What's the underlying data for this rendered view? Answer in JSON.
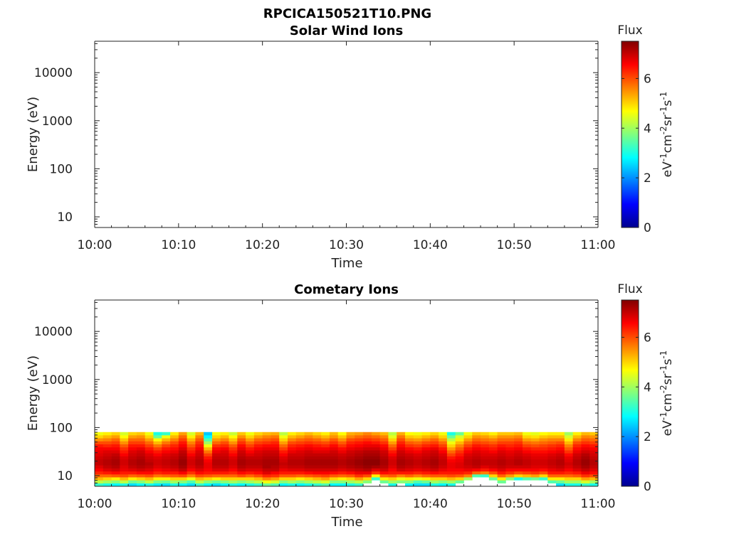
{
  "figure_title": "RPCICA150521T10.PNG",
  "chart_data": [
    {
      "type": "heatmap",
      "title": "Solar Wind Ions",
      "xlabel": "Time",
      "ylabel": "Energy (eV)",
      "yscale": "log",
      "ylim": [
        6,
        45000
      ],
      "x_ticks": [
        "10:00",
        "10:10",
        "10:20",
        "10:30",
        "10:40",
        "10:50",
        "11:00"
      ],
      "y_ticks": [
        "10",
        "100",
        "1000",
        "10000"
      ],
      "colorbar": {
        "label": "Flux",
        "unit_html": "eV<tspan dy='-7' font-size='12'>-1</tspan><tspan dy='7'>cm</tspan><tspan dy='-7' font-size='12'>-2</tspan><tspan dy='7'>sr</tspan><tspan dy='-7' font-size='12'>-1</tspan><tspan dy='7'>s</tspan><tspan dy='-7' font-size='12'>-1</tspan>",
        "ticks": [
          "0",
          "2",
          "4",
          "6"
        ],
        "range": [
          0,
          7.5
        ]
      },
      "columns": []
    },
    {
      "type": "heatmap",
      "title": "Cometary Ions",
      "xlabel": "Time",
      "ylabel": "Energy (eV)",
      "yscale": "log",
      "ylim": [
        6,
        45000
      ],
      "x_ticks": [
        "10:00",
        "10:10",
        "10:20",
        "10:30",
        "10:40",
        "10:50",
        "11:00"
      ],
      "y_ticks": [
        "10",
        "100",
        "1000",
        "10000"
      ],
      "colorbar": {
        "label": "Flux",
        "unit_html": "eV<tspan dy='-7' font-size='12'>-1</tspan><tspan dy='7'>cm</tspan><tspan dy='-7' font-size='12'>-2</tspan><tspan dy='7'>sr</tspan><tspan dy='-7' font-size='12'>-1</tspan><tspan dy='7'>s</tspan><tspan dy='-7' font-size='12'>-1</tspan>",
        "ticks": [
          "0",
          "2",
          "4",
          "6"
        ],
        "range": [
          0,
          7.5
        ]
      },
      "energy_bins": [
        6.5,
        7.5,
        8.7,
        10,
        11.5,
        13.3,
        15.4,
        17.8,
        20.5,
        23.7,
        27.4,
        31.6,
        36.5,
        42.2,
        48.7,
        56.3,
        65,
        75
      ],
      "column_minutes": 1,
      "columns": [
        [
          3.2,
          4.2,
          5.2,
          5.8,
          6.3,
          6.6,
          6.8,
          7.0,
          7.0,
          6.9,
          6.8,
          6.7,
          6.6,
          6.4,
          6.0,
          5.5,
          5.0,
          4.6
        ],
        [
          3.0,
          4.0,
          5.0,
          5.8,
          6.4,
          6.8,
          7.0,
          7.1,
          7.1,
          7.0,
          6.9,
          6.8,
          6.6,
          6.3,
          6.0,
          5.6,
          5.2,
          4.8
        ],
        [
          2.8,
          3.8,
          4.8,
          5.9,
          6.5,
          6.9,
          7.1,
          7.2,
          7.2,
          7.1,
          7.0,
          6.8,
          6.6,
          6.4,
          6.1,
          5.8,
          5.4,
          5.0
        ],
        [
          3.0,
          4.2,
          5.2,
          6.0,
          6.4,
          6.7,
          6.8,
          6.9,
          6.9,
          6.8,
          6.6,
          6.4,
          6.2,
          5.9,
          5.5,
          5.1,
          4.7,
          4.4
        ],
        [
          2.6,
          3.6,
          4.8,
          5.8,
          6.4,
          6.8,
          7.0,
          7.1,
          7.1,
          7.0,
          6.9,
          6.8,
          6.6,
          6.4,
          6.1,
          5.8,
          5.4,
          5.0
        ],
        [
          2.8,
          3.8,
          5.0,
          5.9,
          6.5,
          6.9,
          7.1,
          7.2,
          7.2,
          7.1,
          7.0,
          6.9,
          6.7,
          6.4,
          6.1,
          5.8,
          5.5,
          5.1
        ],
        [
          3.0,
          4.2,
          5.2,
          6.0,
          6.5,
          6.8,
          7.0,
          7.1,
          7.0,
          6.9,
          6.8,
          6.6,
          6.4,
          6.1,
          5.8,
          5.4,
          5.0,
          4.6
        ],
        [
          2.7,
          3.7,
          4.8,
          5.7,
          6.3,
          6.6,
          6.8,
          6.9,
          6.9,
          6.8,
          6.6,
          6.4,
          6.1,
          5.7,
          5.2,
          4.7,
          3.6,
          3.0
        ],
        [
          2.6,
          3.6,
          4.8,
          5.8,
          6.4,
          6.7,
          6.9,
          7.0,
          7.0,
          6.9,
          6.8,
          6.6,
          6.4,
          6.1,
          5.7,
          5.2,
          4.6,
          3.2
        ],
        [
          3.0,
          4.0,
          5.0,
          5.9,
          6.4,
          6.8,
          7.0,
          7.1,
          7.1,
          7.0,
          6.9,
          6.7,
          6.5,
          6.3,
          6.0,
          5.6,
          5.2,
          4.8
        ],
        [
          2.8,
          3.8,
          5.0,
          6.0,
          6.6,
          7.0,
          7.2,
          7.3,
          7.3,
          7.2,
          7.1,
          7.0,
          6.8,
          6.6,
          6.4,
          6.1,
          5.8,
          5.4
        ],
        [
          2.6,
          3.4,
          4.6,
          5.6,
          6.2,
          6.6,
          6.8,
          6.9,
          6.9,
          6.8,
          6.6,
          6.4,
          6.2,
          5.9,
          5.6,
          5.2,
          4.8,
          4.4
        ],
        [
          3.2,
          4.2,
          5.2,
          6.0,
          6.5,
          6.8,
          7.0,
          7.1,
          7.1,
          7.0,
          6.9,
          6.8,
          6.6,
          6.4,
          6.2,
          5.9,
          5.6,
          5.2
        ],
        [
          2.8,
          3.8,
          5.0,
          5.9,
          6.4,
          6.6,
          6.7,
          6.7,
          6.6,
          6.4,
          6.1,
          5.7,
          5.2,
          4.6,
          4.0,
          3.4,
          2.8,
          2.4
        ],
        [
          2.6,
          3.6,
          4.8,
          5.8,
          6.4,
          6.8,
          7.0,
          7.1,
          7.1,
          7.0,
          6.9,
          6.7,
          6.5,
          6.2,
          5.8,
          5.4,
          5.0,
          4.6
        ],
        [
          2.8,
          3.8,
          5.0,
          5.8,
          6.4,
          6.8,
          7.0,
          7.1,
          7.1,
          7.0,
          6.9,
          6.8,
          6.6,
          6.3,
          6.0,
          5.6,
          5.2,
          4.8
        ],
        [
          3.0,
          4.0,
          5.0,
          5.8,
          6.3,
          6.6,
          6.8,
          6.9,
          6.9,
          6.8,
          6.6,
          6.4,
          6.2,
          5.9,
          5.5,
          5.1,
          4.7,
          4.3
        ],
        [
          2.8,
          3.8,
          5.0,
          6.0,
          6.5,
          6.9,
          7.1,
          7.2,
          7.2,
          7.1,
          7.0,
          6.9,
          6.7,
          6.5,
          6.2,
          5.9,
          5.5,
          5.1
        ],
        [
          3.0,
          4.0,
          5.0,
          5.8,
          6.4,
          6.8,
          7.0,
          7.1,
          7.1,
          7.0,
          6.8,
          6.6,
          6.4,
          6.1,
          5.8,
          5.4,
          5.0,
          4.6
        ],
        [
          3.2,
          4.2,
          5.2,
          6.0,
          6.5,
          6.8,
          7.0,
          7.1,
          7.1,
          7.0,
          6.9,
          6.8,
          6.6,
          6.4,
          6.1,
          5.8,
          5.4,
          5.0
        ],
        [
          3.6,
          4.6,
          5.6,
          6.3,
          6.8,
          7.0,
          7.2,
          7.2,
          7.2,
          7.1,
          7.0,
          6.9,
          6.7,
          6.5,
          6.2,
          5.9,
          5.6,
          5.2
        ],
        [
          3.4,
          4.4,
          5.4,
          6.2,
          6.6,
          7.0,
          7.1,
          7.2,
          7.2,
          7.1,
          7.0,
          6.9,
          6.7,
          6.5,
          6.3,
          6.0,
          5.7,
          5.3
        ],
        [
          2.8,
          3.8,
          5.0,
          5.9,
          6.4,
          6.7,
          6.9,
          7.0,
          6.9,
          6.8,
          6.6,
          6.4,
          6.1,
          5.8,
          5.4,
          5.0,
          4.6,
          4.2
        ],
        [
          3.0,
          4.0,
          5.0,
          5.9,
          6.4,
          6.8,
          7.0,
          7.1,
          7.1,
          7.0,
          6.9,
          6.7,
          6.5,
          6.3,
          6.0,
          5.6,
          5.2,
          4.8
        ],
        [
          2.8,
          3.8,
          4.8,
          5.8,
          6.4,
          6.8,
          7.0,
          7.1,
          7.1,
          7.0,
          6.9,
          6.8,
          6.6,
          6.4,
          6.1,
          5.8,
          5.4,
          5.0
        ],
        [
          3.0,
          4.0,
          5.0,
          5.9,
          6.5,
          6.9,
          7.1,
          7.2,
          7.2,
          7.1,
          7.0,
          6.9,
          6.7,
          6.5,
          6.2,
          5.9,
          5.6,
          5.2
        ],
        [
          3.2,
          4.2,
          5.2,
          6.0,
          6.6,
          6.9,
          7.1,
          7.2,
          7.2,
          7.1,
          7.0,
          6.8,
          6.6,
          6.4,
          6.1,
          5.8,
          5.4,
          5.0
        ],
        [
          3.4,
          4.4,
          5.4,
          6.1,
          6.6,
          6.9,
          7.1,
          7.2,
          7.2,
          7.1,
          7.0,
          6.8,
          6.6,
          6.3,
          6.0,
          5.6,
          5.2,
          4.8
        ],
        [
          2.8,
          3.8,
          5.0,
          5.9,
          6.5,
          6.9,
          7.1,
          7.2,
          7.2,
          7.1,
          7.0,
          6.9,
          6.7,
          6.5,
          6.2,
          5.9,
          5.5,
          5.2
        ],
        [
          2.8,
          3.8,
          4.8,
          5.8,
          6.4,
          6.8,
          7.0,
          7.1,
          7.1,
          7.0,
          6.9,
          6.7,
          6.5,
          6.2,
          5.9,
          5.5,
          5.1,
          4.7
        ],
        [
          3.0,
          4.0,
          5.0,
          5.9,
          6.5,
          6.9,
          7.1,
          7.2,
          7.2,
          7.1,
          7.0,
          6.9,
          6.7,
          6.5,
          6.3,
          6.0,
          5.6,
          5.3
        ],
        [
          3.2,
          4.2,
          5.4,
          6.2,
          6.7,
          7.0,
          7.2,
          7.3,
          7.3,
          7.2,
          7.1,
          7.0,
          6.8,
          6.6,
          6.4,
          6.1,
          5.8,
          5.4
        ],
        [
          null,
          3.8,
          5.0,
          6.0,
          6.7,
          7.1,
          7.3,
          7.4,
          7.4,
          7.3,
          7.2,
          7.1,
          6.9,
          6.7,
          6.5,
          6.2,
          5.9,
          5.6
        ],
        [
          null,
          null,
          3.2,
          4.8,
          6.2,
          6.8,
          7.2,
          7.4,
          7.4,
          7.3,
          7.2,
          7.1,
          6.9,
          6.7,
          6.4,
          6.1,
          5.8,
          5.4
        ],
        [
          null,
          3.6,
          4.8,
          5.8,
          6.5,
          6.9,
          7.1,
          7.2,
          7.2,
          7.1,
          7.0,
          6.9,
          6.7,
          6.5,
          6.2,
          5.9,
          5.6,
          5.2
        ],
        [
          3.0,
          4.0,
          5.0,
          5.9,
          6.4,
          6.6,
          6.8,
          6.9,
          6.9,
          6.8,
          6.6,
          6.4,
          6.1,
          5.8,
          5.4,
          5.0,
          4.5,
          4.2
        ],
        [
          null,
          3.8,
          4.6,
          5.6,
          6.4,
          6.9,
          7.1,
          7.2,
          7.2,
          7.1,
          7.0,
          6.9,
          6.7,
          6.5,
          6.3,
          6.0,
          5.7,
          5.3
        ],
        [
          2.8,
          3.8,
          4.8,
          5.8,
          6.4,
          6.8,
          7.0,
          7.1,
          7.1,
          7.0,
          6.9,
          6.7,
          6.5,
          6.2,
          5.9,
          5.5,
          5.1,
          4.7
        ],
        [
          2.6,
          3.4,
          4.6,
          5.6,
          6.3,
          6.7,
          6.9,
          7.0,
          7.0,
          6.9,
          6.8,
          6.6,
          6.4,
          6.1,
          5.8,
          5.4,
          5.0,
          4.6
        ],
        [
          2.6,
          3.6,
          4.8,
          5.8,
          6.4,
          6.8,
          7.0,
          7.1,
          7.1,
          7.0,
          6.9,
          6.8,
          6.6,
          6.3,
          6.0,
          5.6,
          5.2,
          4.8
        ],
        [
          3.0,
          4.0,
          5.0,
          5.9,
          6.5,
          6.9,
          7.1,
          7.2,
          7.2,
          7.1,
          7.0,
          6.9,
          6.7,
          6.4,
          6.1,
          5.8,
          5.4,
          5.0
        ],
        [
          2.8,
          3.8,
          5.0,
          5.9,
          6.4,
          6.7,
          6.9,
          7.0,
          7.0,
          6.9,
          6.8,
          6.6,
          6.4,
          6.1,
          5.8,
          5.4,
          5.0,
          4.6
        ],
        [
          3.0,
          4.0,
          5.2,
          6.0,
          6.4,
          6.6,
          6.7,
          6.7,
          6.6,
          6.4,
          6.1,
          5.8,
          5.4,
          5.0,
          4.6,
          4.2,
          3.6,
          3.0
        ],
        [
          null,
          3.6,
          5.0,
          5.9,
          6.4,
          6.6,
          6.8,
          6.8,
          6.7,
          6.6,
          6.4,
          6.2,
          5.9,
          5.6,
          5.2,
          4.8,
          4.4,
          3.6
        ],
        [
          null,
          null,
          4.0,
          5.6,
          6.3,
          6.7,
          6.9,
          7.0,
          7.0,
          6.9,
          6.8,
          6.6,
          6.4,
          6.1,
          5.8,
          5.4,
          5.0,
          4.6
        ],
        [
          null,
          null,
          null,
          3.4,
          5.8,
          6.6,
          7.0,
          7.1,
          7.1,
          7.0,
          6.9,
          6.8,
          6.6,
          6.4,
          6.1,
          5.8,
          5.5,
          5.1
        ],
        [
          null,
          null,
          null,
          3.2,
          5.6,
          6.4,
          6.8,
          7.0,
          7.0,
          6.9,
          6.8,
          6.7,
          6.5,
          6.3,
          6.0,
          5.7,
          5.4,
          5.0
        ],
        [
          null,
          null,
          3.6,
          5.0,
          6.0,
          6.6,
          6.9,
          7.0,
          7.0,
          6.9,
          6.8,
          6.6,
          6.4,
          6.2,
          5.9,
          5.6,
          5.2,
          4.8
        ],
        [
          null,
          3.6,
          4.8,
          5.8,
          6.4,
          6.8,
          7.0,
          7.1,
          7.1,
          7.0,
          6.9,
          6.8,
          6.6,
          6.4,
          6.1,
          5.8,
          5.5,
          5.1
        ],
        [
          null,
          null,
          3.8,
          5.4,
          6.2,
          6.6,
          6.9,
          7.0,
          7.0,
          6.9,
          6.8,
          6.7,
          6.5,
          6.3,
          6.1,
          5.8,
          5.5,
          5.1
        ],
        [
          null,
          null,
          3.0,
          5.0,
          6.0,
          6.6,
          6.9,
          7.1,
          7.1,
          7.0,
          6.9,
          6.8,
          6.6,
          6.4,
          6.2,
          5.9,
          5.6,
          5.2
        ],
        [
          null,
          null,
          3.4,
          5.2,
          6.1,
          6.6,
          6.9,
          7.0,
          7.0,
          6.9,
          6.8,
          6.6,
          6.4,
          6.1,
          5.8,
          5.4,
          5.0,
          4.6
        ],
        [
          null,
          null,
          3.6,
          5.4,
          6.2,
          6.6,
          6.8,
          6.9,
          6.9,
          6.8,
          6.7,
          6.5,
          6.3,
          6.0,
          5.7,
          5.3,
          4.9,
          4.5
        ],
        [
          null,
          null,
          3.2,
          5.0,
          6.0,
          6.5,
          6.8,
          6.9,
          6.9,
          6.8,
          6.7,
          6.5,
          6.3,
          6.1,
          5.8,
          5.5,
          5.1,
          4.7
        ],
        [
          null,
          3.4,
          4.8,
          5.8,
          6.4,
          6.7,
          6.9,
          7.0,
          7.0,
          6.9,
          6.8,
          6.6,
          6.4,
          6.2,
          5.9,
          5.6,
          5.2,
          4.8
        ],
        [
          2.6,
          3.6,
          4.8,
          5.8,
          6.4,
          6.8,
          7.0,
          7.1,
          7.1,
          7.0,
          6.9,
          6.7,
          6.5,
          6.3,
          6.0,
          5.6,
          5.2,
          4.8
        ],
        [
          3.0,
          4.0,
          5.0,
          5.8,
          6.3,
          6.6,
          6.8,
          6.9,
          6.8,
          6.7,
          6.5,
          6.2,
          5.9,
          5.6,
          5.2,
          4.8,
          4.4,
          4.0
        ],
        [
          3.0,
          4.0,
          5.0,
          5.9,
          6.4,
          6.8,
          7.0,
          7.1,
          7.1,
          7.0,
          6.9,
          6.7,
          6.5,
          6.3,
          6.0,
          5.6,
          5.2,
          4.8
        ],
        [
          3.2,
          4.4,
          5.4,
          6.2,
          6.7,
          7.0,
          7.2,
          7.3,
          7.3,
          7.2,
          7.1,
          6.9,
          6.7,
          6.5,
          6.2,
          5.9,
          5.6,
          5.2
        ],
        [
          3.0,
          4.0,
          5.2,
          6.0,
          6.5,
          6.8,
          7.0,
          7.1,
          7.1,
          7.0,
          6.9,
          6.8,
          6.6,
          6.4,
          6.1,
          5.8,
          5.5,
          5.1
        ]
      ]
    }
  ]
}
